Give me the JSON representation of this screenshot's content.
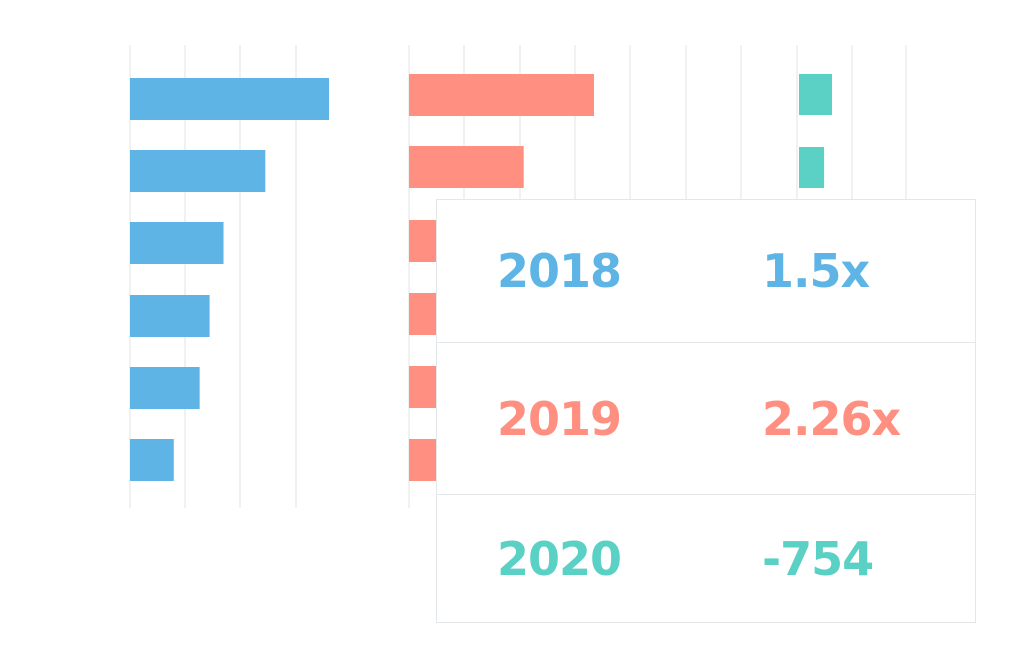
{
  "chart_data": {
    "type": "bar",
    "orientation": "horizontal",
    "grid": true,
    "panels": [
      {
        "name": "2018",
        "color": "#5db4e5",
        "values": [
          100,
          68,
          47,
          40,
          35,
          22
        ]
      },
      {
        "name": "2019",
        "color": "#ff8f80",
        "values": [
          100,
          62,
          15,
          15,
          15,
          15
        ]
      },
      {
        "name": "2020",
        "color": "#5bd0c4",
        "values": [
          100,
          76
        ]
      }
    ]
  },
  "legend": [
    {
      "year": "2018",
      "value": "1.5x",
      "color": "#5db4e5"
    },
    {
      "year": "2019",
      "value": "2.26x",
      "color": "#ff8f80"
    },
    {
      "year": "2020",
      "value": "-754",
      "color": "#5bd0c4"
    }
  ]
}
